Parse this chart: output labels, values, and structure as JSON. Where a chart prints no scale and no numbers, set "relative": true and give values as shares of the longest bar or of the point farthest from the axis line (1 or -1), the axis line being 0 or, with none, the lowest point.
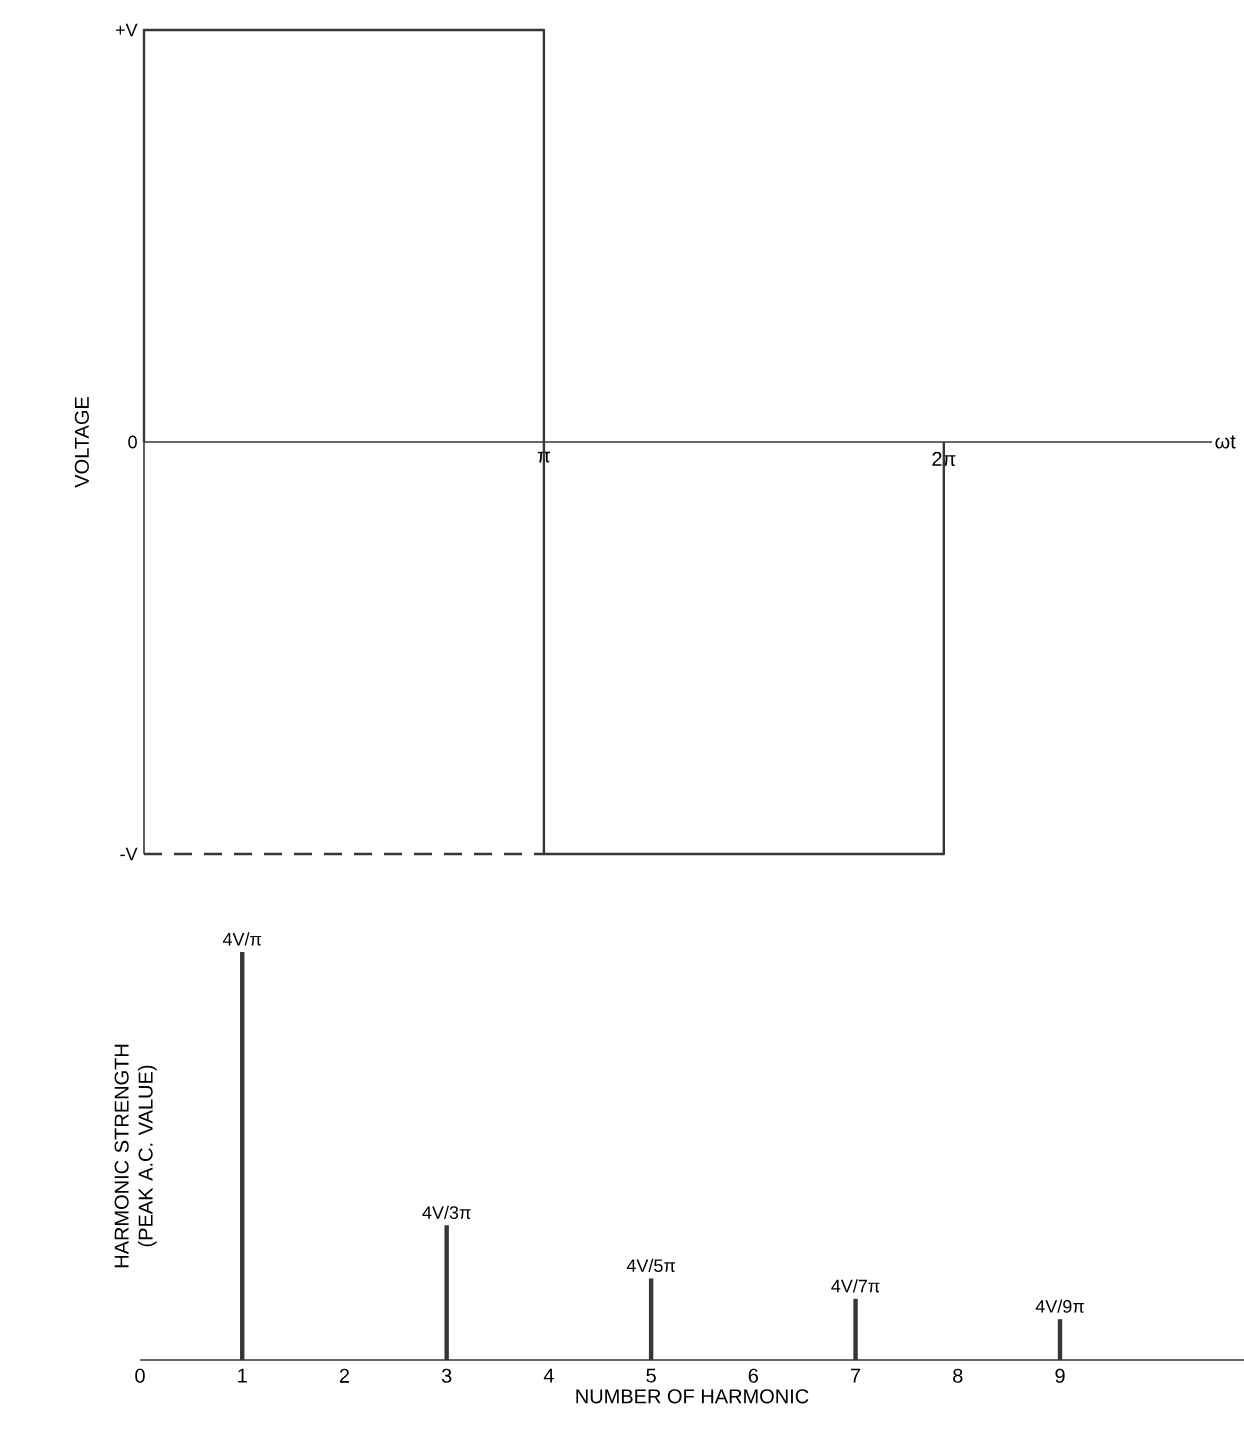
{
  "chart_data": [
    {
      "type": "line",
      "relative": true,
      "ylabel": "VOLTAGE",
      "xlabel": "ωt",
      "xlim": [
        0,
        8.39
      ],
      "xticks": [
        {
          "value": 3.1416,
          "label": "π"
        },
        {
          "value": 6.2832,
          "label": "2π"
        }
      ],
      "marker": "none",
      "annotations": [
        {
          "text": "+V",
          "x": 0,
          "y": 1
        },
        {
          "text": "0",
          "x": 0,
          "y": 0
        },
        {
          "text": "-V",
          "x": 0,
          "y": -1
        }
      ],
      "series": [
        {
          "color": "#333833",
          "line_style": "solid",
          "x": [
            0,
            0,
            3.1416,
            3.1416,
            6.2832,
            6.2832
          ],
          "values": [
            0,
            1,
            1,
            -1,
            -1,
            0
          ]
        },
        {
          "color": "#333833",
          "line_style": "dashed",
          "x": [
            0,
            3.1416
          ],
          "values": [
            -1,
            -1
          ]
        }
      ]
    },
    {
      "type": "bar",
      "relative": true,
      "ylabel": "HARMONIC STRENGTH (PEAK A.C. VALUE)",
      "xlabel": "NUMBER OF HARMONIC",
      "xlim": [
        0,
        10.8
      ],
      "xticks": [
        0,
        1,
        2,
        3,
        4,
        5,
        6,
        7,
        8,
        9
      ],
      "x": [
        1,
        3,
        5,
        7,
        9
      ],
      "values": [
        1,
        0.33,
        0.2,
        0.15,
        0.1
      ],
      "color": "#333833",
      "annotations": [
        {
          "text": "4V/π",
          "x": 1,
          "y": 1
        },
        {
          "text": "4V/3π",
          "x": 3,
          "y": 0.33
        },
        {
          "text": "4V/5π",
          "x": 5,
          "y": 0.2
        },
        {
          "text": "4V/7π",
          "x": 7,
          "y": 0.15
        },
        {
          "text": "4V/9π",
          "x": 9,
          "y": 0.1
        }
      ]
    }
  ]
}
